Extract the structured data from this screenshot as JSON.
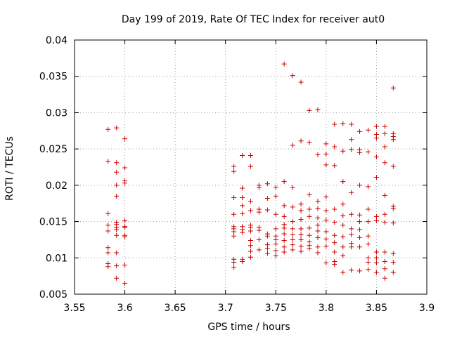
{
  "chart_data": {
    "type": "scatter",
    "title": "Day 199 of 2019, Rate Of TEC Index for receiver aut0",
    "xlabel": "GPS time / hours",
    "ylabel": "ROTI / TECUs",
    "xlim": [
      3.55,
      3.9
    ],
    "ylim": [
      0.005,
      0.04
    ],
    "xticks": [
      3.55,
      3.6,
      3.65,
      3.7,
      3.75,
      3.8,
      3.85,
      3.9
    ],
    "yticks": [
      0.005,
      0.01,
      0.015,
      0.02,
      0.025,
      0.03,
      0.035,
      0.04
    ],
    "xtick_labels": [
      "3.55",
      "3.6",
      "3.65",
      "3.7",
      "3.75",
      "3.8",
      "3.85",
      "3.9"
    ],
    "ytick_labels": [
      "0.005",
      "0.01",
      "0.015",
      "0.02",
      "0.025",
      "0.03",
      "0.035",
      "0.04"
    ],
    "grid": true,
    "marker": "+",
    "color": "#cc0000",
    "series": [
      {
        "name": "ROTI",
        "x": [
          3.5833,
          3.5833,
          3.5833,
          3.5833,
          3.5833,
          3.5833,
          3.5833,
          3.5833,
          3.5833,
          3.5917,
          3.5917,
          3.5917,
          3.5917,
          3.5917,
          3.5917,
          3.5917,
          3.5917,
          3.5917,
          3.5917,
          3.5917,
          3.5917,
          3.5917,
          3.6,
          3.6,
          3.6,
          3.6,
          3.6,
          3.6,
          3.6,
          3.6,
          3.6,
          3.6,
          3.6,
          3.7083,
          3.7083,
          3.7083,
          3.7083,
          3.7083,
          3.7083,
          3.7083,
          3.7083,
          3.7083,
          3.7083,
          3.7083,
          3.7167,
          3.7167,
          3.7167,
          3.7167,
          3.7167,
          3.7167,
          3.7167,
          3.7167,
          3.7167,
          3.7167,
          3.725,
          3.725,
          3.725,
          3.725,
          3.725,
          3.725,
          3.725,
          3.725,
          3.725,
          3.725,
          3.725,
          3.7333,
          3.7333,
          3.7333,
          3.7333,
          3.7333,
          3.7333,
          3.7333,
          3.7333,
          3.7417,
          3.7417,
          3.7417,
          3.7417,
          3.7417,
          3.7417,
          3.7417,
          3.7417,
          3.75,
          3.75,
          3.75,
          3.75,
          3.75,
          3.75,
          3.75,
          3.75,
          3.75,
          3.7583,
          3.7583,
          3.7583,
          3.7583,
          3.7583,
          3.7583,
          3.7583,
          3.7583,
          3.7583,
          3.7583,
          3.7667,
          3.7667,
          3.7667,
          3.7667,
          3.7667,
          3.7667,
          3.7667,
          3.7667,
          3.7667,
          3.7667,
          3.775,
          3.775,
          3.775,
          3.775,
          3.775,
          3.775,
          3.775,
          3.775,
          3.775,
          3.775,
          3.7833,
          3.7833,
          3.7833,
          3.7833,
          3.7833,
          3.7833,
          3.7833,
          3.7833,
          3.7833,
          3.7833,
          3.7917,
          3.7917,
          3.7917,
          3.7917,
          3.7917,
          3.7917,
          3.7917,
          3.7917,
          3.7917,
          3.7917,
          3.8,
          3.8,
          3.8,
          3.8,
          3.8,
          3.8,
          3.8,
          3.8,
          3.8,
          3.8,
          3.8083,
          3.8083,
          3.8083,
          3.8083,
          3.8083,
          3.8083,
          3.8083,
          3.8083,
          3.8083,
          3.8083,
          3.8167,
          3.8167,
          3.8167,
          3.8167,
          3.8167,
          3.8167,
          3.8167,
          3.8167,
          3.8167,
          3.8167,
          3.825,
          3.825,
          3.825,
          3.825,
          3.825,
          3.825,
          3.825,
          3.825,
          3.825,
          3.825,
          3.8333,
          3.8333,
          3.8333,
          3.8333,
          3.8333,
          3.8333,
          3.8333,
          3.8333,
          3.8333,
          3.8333,
          3.8417,
          3.8417,
          3.8417,
          3.8417,
          3.8417,
          3.8417,
          3.8417,
          3.8417,
          3.8417,
          3.8417,
          3.85,
          3.85,
          3.85,
          3.85,
          3.85,
          3.85,
          3.85,
          3.85,
          3.85,
          3.85,
          3.85,
          3.8583,
          3.8583,
          3.8583,
          3.8583,
          3.8583,
          3.8583,
          3.8583,
          3.8583,
          3.8583,
          3.8583,
          3.8583,
          3.8667,
          3.8667,
          3.8667,
          3.8667,
          3.8667,
          3.8667,
          3.8667,
          3.8667,
          3.8667,
          3.8667,
          3.8667
        ],
        "y": [
          0.0277,
          0.0233,
          0.0161,
          0.0137,
          0.0114,
          0.0107,
          0.0092,
          0.0088,
          0.0145,
          0.0279,
          0.0231,
          0.0218,
          0.02,
          0.0185,
          0.0149,
          0.0146,
          0.0142,
          0.0131,
          0.0107,
          0.0089,
          0.0072,
          0.0139,
          0.0264,
          0.0224,
          0.0206,
          0.0203,
          0.0151,
          0.0143,
          0.0142,
          0.0131,
          0.0129,
          0.009,
          0.0065,
          0.0226,
          0.0219,
          0.0183,
          0.016,
          0.0143,
          0.014,
          0.0136,
          0.013,
          0.0098,
          0.0094,
          0.0087,
          0.0241,
          0.0196,
          0.0183,
          0.0172,
          0.0161,
          0.0143,
          0.0139,
          0.0135,
          0.0098,
          0.0095,
          0.0241,
          0.0226,
          0.0178,
          0.0165,
          0.0145,
          0.0142,
          0.0137,
          0.0124,
          0.0117,
          0.0109,
          0.0101,
          0.02,
          0.0197,
          0.0167,
          0.0163,
          0.0142,
          0.0138,
          0.0125,
          0.0111,
          0.0202,
          0.0182,
          0.0166,
          0.0133,
          0.013,
          0.0118,
          0.0113,
          0.0106,
          0.0197,
          0.0185,
          0.016,
          0.014,
          0.013,
          0.0125,
          0.0119,
          0.011,
          0.0103,
          0.0367,
          0.0205,
          0.0172,
          0.0157,
          0.0146,
          0.0141,
          0.0133,
          0.0124,
          0.0115,
          0.0108,
          0.0351,
          0.0255,
          0.0197,
          0.017,
          0.015,
          0.014,
          0.0132,
          0.0125,
          0.0118,
          0.0111,
          0.0342,
          0.0261,
          0.0174,
          0.0165,
          0.0153,
          0.014,
          0.0132,
          0.0125,
          0.0116,
          0.0109,
          0.0303,
          0.0259,
          0.0187,
          0.0167,
          0.0157,
          0.0141,
          0.0131,
          0.0122,
          0.0117,
          0.0113,
          0.0304,
          0.0242,
          0.0178,
          0.0168,
          0.0155,
          0.0145,
          0.0137,
          0.0128,
          0.0115,
          0.0107,
          0.0257,
          0.0243,
          0.0228,
          0.0184,
          0.0165,
          0.0152,
          0.0136,
          0.0126,
          0.0116,
          0.0093,
          0.0284,
          0.0253,
          0.0227,
          0.0167,
          0.0149,
          0.0131,
          0.0121,
          0.0108,
          0.0095,
          0.0091,
          0.0285,
          0.0247,
          0.0205,
          0.0174,
          0.0158,
          0.0145,
          0.0129,
          0.0115,
          0.0103,
          0.008,
          0.0284,
          0.0263,
          0.0249,
          0.019,
          0.016,
          0.014,
          0.0132,
          0.012,
          0.0115,
          0.0083,
          0.0274,
          0.0249,
          0.0245,
          0.02,
          0.0159,
          0.015,
          0.0139,
          0.0128,
          0.0115,
          0.0082,
          0.0276,
          0.0246,
          0.0198,
          0.0167,
          0.015,
          0.013,
          0.0119,
          0.01,
          0.0094,
          0.0084,
          0.0281,
          0.027,
          0.0265,
          0.0239,
          0.0211,
          0.0157,
          0.0151,
          0.0108,
          0.01,
          0.0093,
          0.008,
          0.0281,
          0.0271,
          0.0253,
          0.0231,
          0.0186,
          0.016,
          0.0149,
          0.0108,
          0.0095,
          0.0085,
          0.0072,
          0.0334,
          0.0271,
          0.0267,
          0.0263,
          0.0226,
          0.0171,
          0.0168,
          0.0148,
          0.0106,
          0.0094,
          0.008
        ]
      }
    ]
  }
}
